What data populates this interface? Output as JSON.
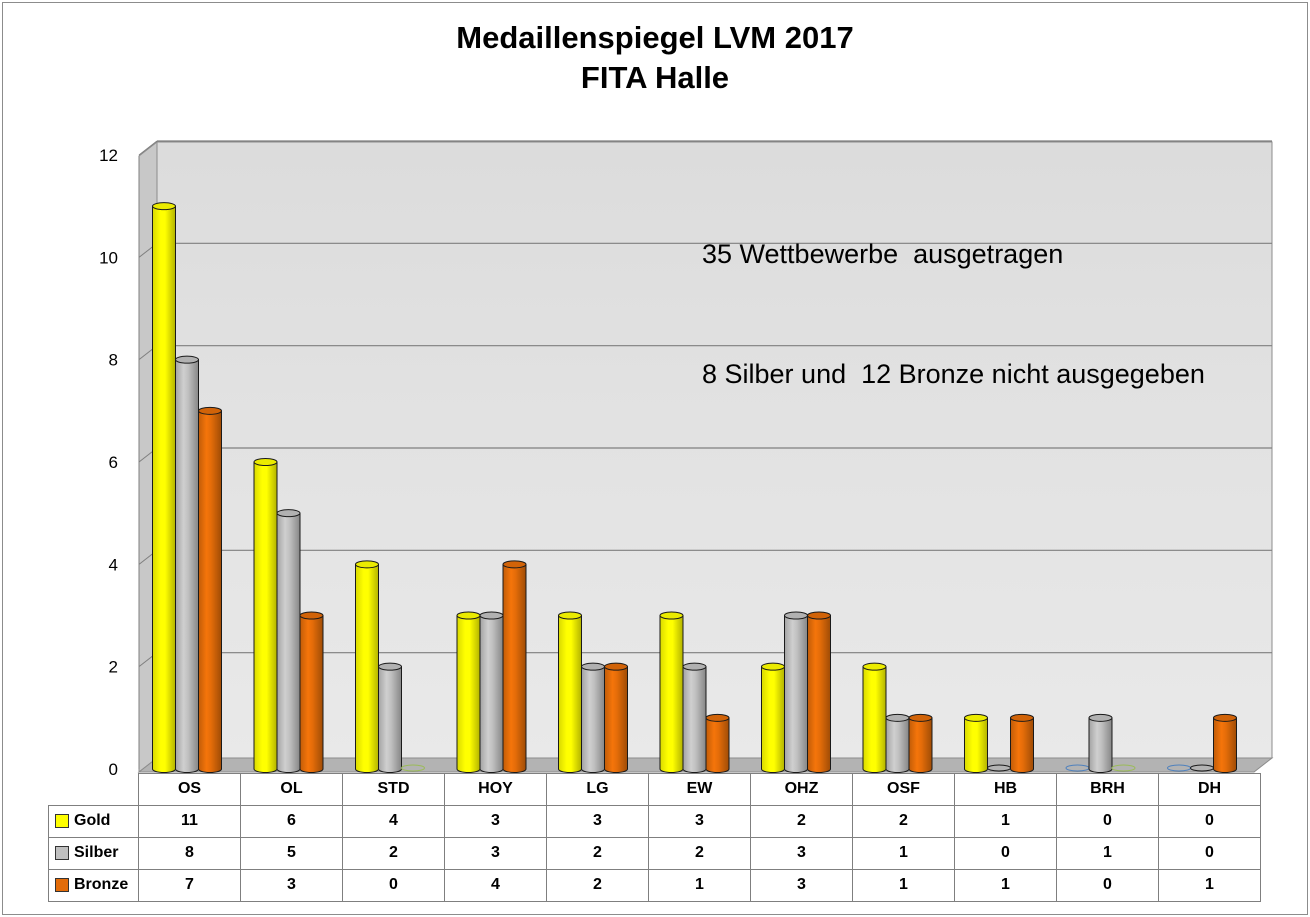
{
  "chart_data": {
    "type": "bar",
    "title": [
      "Medaillenspiegel LVM 2017",
      "FITA Halle"
    ],
    "annotation": [
      "35 Wettbewerbe  ausgetragen",
      "8 Silber und  12 Bronze nicht ausgegeben"
    ],
    "categories": [
      "OS",
      "OL",
      "STD",
      "HOY",
      "LG",
      "EW",
      "OHZ",
      "OSF",
      "HB",
      "BRH",
      "DH"
    ],
    "series": [
      {
        "name": "Gold",
        "color": "#ffff00",
        "values": [
          11,
          6,
          4,
          3,
          3,
          3,
          2,
          2,
          1,
          0,
          0
        ]
      },
      {
        "name": "Silber",
        "color": "#c0c0c0",
        "values": [
          8,
          5,
          2,
          3,
          2,
          2,
          3,
          1,
          0,
          1,
          0
        ]
      },
      {
        "name": "Bronze",
        "color": "#e36c09",
        "values": [
          7,
          3,
          0,
          4,
          2,
          1,
          3,
          1,
          1,
          0,
          1
        ]
      }
    ],
    "ylim": [
      0,
      12
    ],
    "yticks": [
      0,
      2,
      4,
      6,
      8,
      10,
      12
    ],
    "grid": true,
    "legend": "data-table"
  }
}
